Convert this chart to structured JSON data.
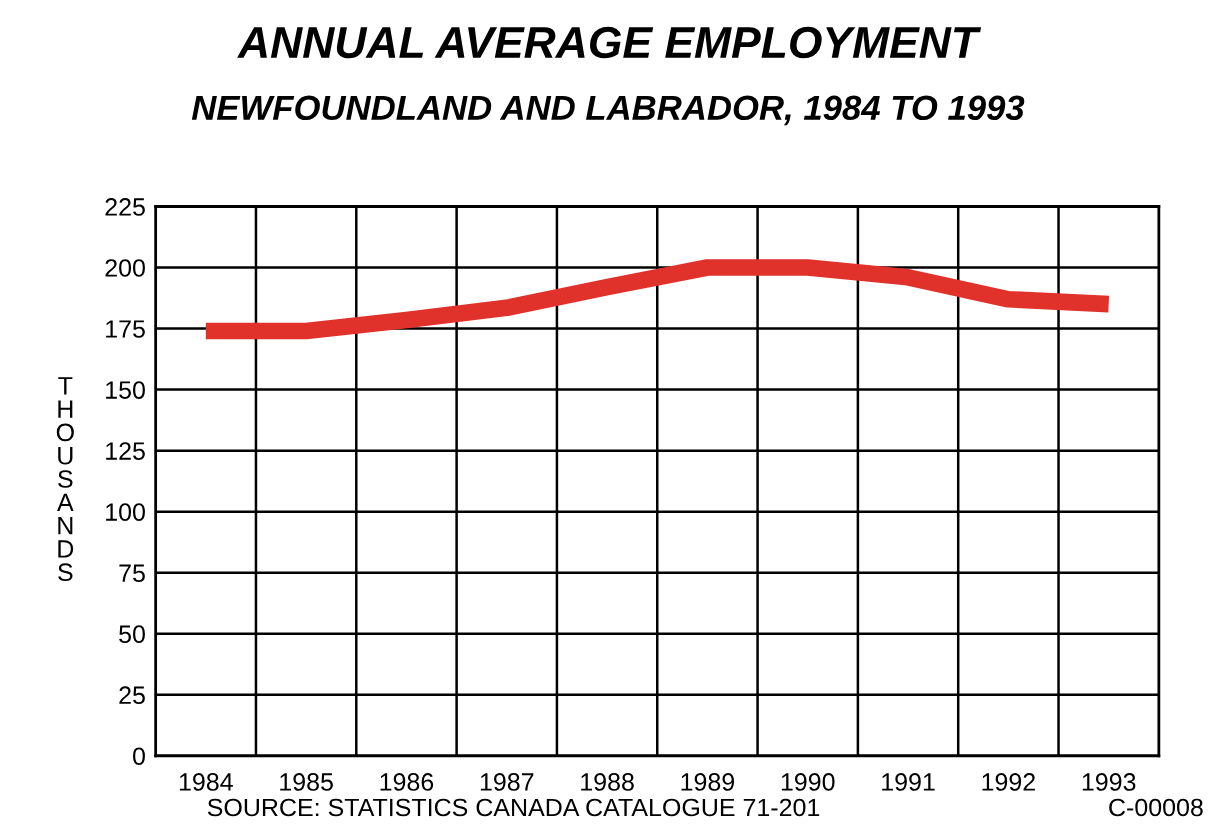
{
  "chart_data": {
    "type": "line",
    "title": "ANNUAL AVERAGE EMPLOYMENT",
    "subtitle": "NEWFOUNDLAND AND LABRADOR, 1984 TO 1993",
    "ylabel": "THOUSANDS",
    "categories": [
      "1984",
      "1985",
      "1986",
      "1987",
      "1988",
      "1989",
      "1990",
      "1991",
      "1992",
      "1993"
    ],
    "series": [
      {
        "color": "#e0312b",
        "values": [
          174,
          174,
          178.5,
          183.5,
          192,
          200,
          200,
          196,
          187,
          185
        ]
      }
    ],
    "ylim": [
      0,
      225
    ],
    "yticks": [
      0,
      25,
      50,
      75,
      100,
      125,
      150,
      175,
      200,
      225
    ],
    "grid": true,
    "legend": false,
    "marker": "none",
    "line_style": "solid",
    "annotations": [
      "SOURCE: STATISTICS CANADA CATALOGUE 71-201",
      "C-00008"
    ]
  }
}
